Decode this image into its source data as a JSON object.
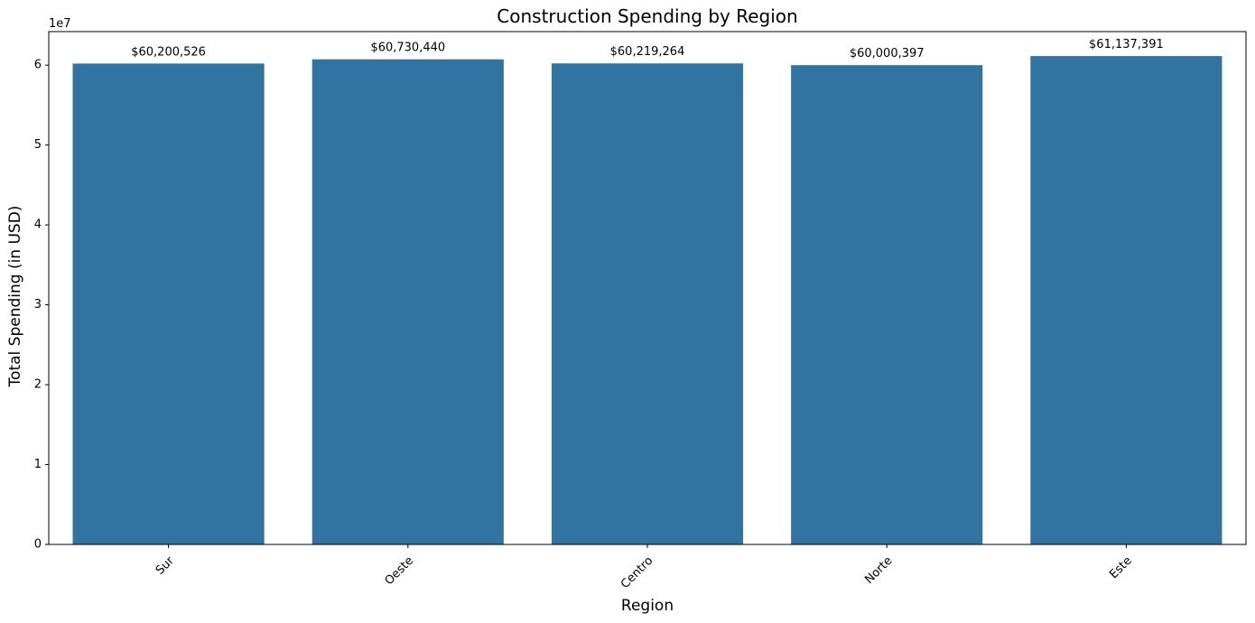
{
  "chart_data": {
    "type": "bar",
    "title": "Construction Spending by Region",
    "xlabel": "Region",
    "ylabel": "Total Spending (in USD)",
    "y_offset_label": "1e7",
    "categories": [
      "Sur",
      "Oeste",
      "Centro",
      "Norte",
      "Este"
    ],
    "values": [
      60200526,
      60730440,
      60219264,
      60000397,
      61137391
    ],
    "value_labels": [
      "$60,200,526",
      "$60,730,440",
      "$60,219,264",
      "$60,000,397",
      "$61,137,391"
    ],
    "ylim": [
      0,
      64200000
    ],
    "yticks": [
      0,
      10000000,
      20000000,
      30000000,
      40000000,
      50000000,
      60000000
    ],
    "ytick_labels": [
      "0",
      "1",
      "2",
      "3",
      "4",
      "5",
      "6"
    ],
    "xtick_rotation": 45,
    "bar_color": "#3274a1",
    "grid": false,
    "legend": "none"
  }
}
